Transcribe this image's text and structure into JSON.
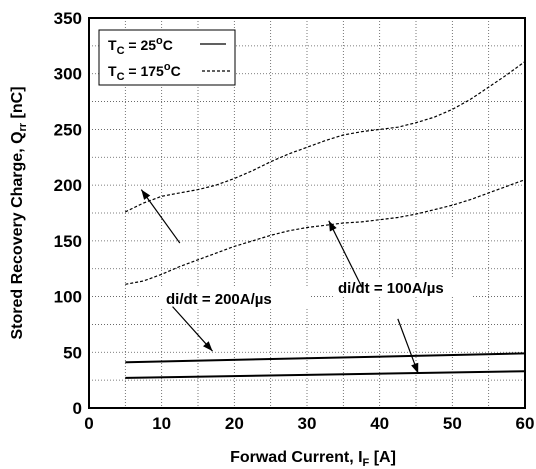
{
  "chart_data": {
    "type": "line",
    "xlabel": {
      "main": "Forwad Current, I",
      "sub": "F",
      "unit": " [A]"
    },
    "ylabel": {
      "main": "Stored Recovery Charge, Q",
      "sub": "rr",
      "unit": " [nC]"
    },
    "xlim": [
      0,
      60
    ],
    "ylim": [
      0,
      350
    ],
    "xticks": [
      "0",
      "10",
      "20",
      "30",
      "40",
      "50",
      "60"
    ],
    "yticks": [
      "0",
      "50",
      "100",
      "150",
      "200",
      "250",
      "300",
      "350"
    ],
    "grid": true,
    "legend": {
      "placement": "top-left",
      "entries": [
        {
          "pre": "T",
          "sub": "C",
          "post": " = 25",
          "deg": "o",
          "end": "C",
          "style": "solid"
        },
        {
          "pre": "T",
          "sub": "C",
          "post": " = 175",
          "deg": "o",
          "end": "C",
          "style": "dashed"
        }
      ]
    },
    "annotations": [
      {
        "text": "di/dt = 200A/µs"
      },
      {
        "text": "di/dt = 100A/µs"
      }
    ],
    "series": [
      {
        "style": "dashed",
        "x": [
          5,
          7.5,
          10,
          12.5,
          15,
          17.5,
          20,
          22.5,
          25,
          27.5,
          30,
          32.5,
          35,
          37.5,
          40,
          42.5,
          45,
          47.5,
          50,
          52.5,
          55,
          57.5,
          60
        ],
        "y": [
          176,
          184,
          190,
          193,
          196,
          200,
          206,
          213,
          221,
          228,
          234,
          240,
          245,
          248,
          250,
          252,
          256,
          261,
          268,
          277,
          288,
          299,
          311
        ]
      },
      {
        "style": "dashed",
        "x": [
          5,
          7.5,
          10,
          12.5,
          15,
          17.5,
          20,
          22.5,
          25,
          27.5,
          30,
          32.5,
          35,
          37.5,
          40,
          42.5,
          45,
          47.5,
          50,
          52.5,
          55,
          57.5,
          60
        ],
        "y": [
          111,
          114,
          120,
          127,
          133,
          139,
          145,
          150,
          155,
          159,
          162,
          164,
          166,
          167,
          169,
          171,
          174,
          178,
          182,
          187,
          193,
          199,
          205
        ]
      },
      {
        "style": "solid",
        "x": [
          5,
          60
        ],
        "y": [
          41,
          49
        ]
      },
      {
        "style": "solid",
        "x": [
          5,
          60
        ],
        "y": [
          27,
          33
        ]
      }
    ]
  }
}
